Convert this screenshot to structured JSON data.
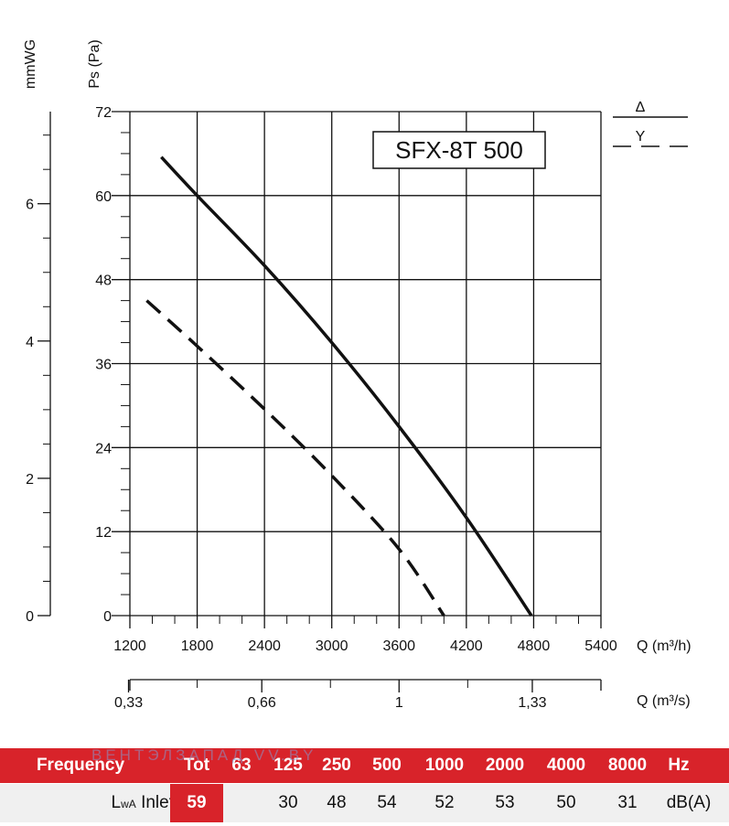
{
  "chart_data": {
    "type": "line",
    "model": "SFX-8T 500",
    "ylabel_primary": "Ps (Pa)",
    "ylabel_secondary": "mmWG",
    "xlabel_primary": "Q (m³/h)",
    "xlabel_secondary": "Q (m³/s)",
    "xlim": [
      1200,
      5400
    ],
    "ylim": [
      0,
      72
    ],
    "grid": true,
    "x_ticks": [
      "1200",
      "1800",
      "2400",
      "3000",
      "3600",
      "4200",
      "4800",
      "5400"
    ],
    "y_ticks": [
      "0",
      "12",
      "24",
      "36",
      "48",
      "60",
      "72"
    ],
    "mmwg_ticks": [
      "0",
      "2",
      "4",
      "6"
    ],
    "ms_ticks": [
      "0,33",
      "0,66",
      "1",
      "1,33"
    ],
    "legend": [
      {
        "symbol": "Δ",
        "style": "solid"
      },
      {
        "symbol": "Y",
        "style": "dashed"
      }
    ],
    "series": [
      {
        "style": "solid",
        "x": [
          1480,
          1800,
          2400,
          3000,
          3600,
          4200,
          4780
        ],
        "y": [
          65.5,
          60,
          50,
          39,
          27,
          14,
          0
        ]
      },
      {
        "style": "dashed",
        "x": [
          1350,
          1800,
          2400,
          3000,
          3600,
          4000
        ],
        "y": [
          45,
          38.5,
          29.5,
          20,
          9.5,
          0
        ]
      }
    ]
  },
  "sound_table": {
    "header_label": "Frequency",
    "tot_label": "Tot",
    "frequencies": [
      "63",
      "125",
      "250",
      "500",
      "1000",
      "2000",
      "4000",
      "8000"
    ],
    "hz_unit": "Hz",
    "row_label_main": "L",
    "row_label_sub": "wA",
    "row_label_tail": " Inlet",
    "tot_value": "59",
    "values": [
      "",
      "30",
      "48",
      "54",
      "52",
      "53",
      "50",
      "31"
    ],
    "db_unit": "dB(A)",
    "watermark": "ВЕНТЭЛЗАПАД VV.BY",
    "colors": {
      "header_bg": "#d8232a",
      "row_bg": "#f0f0f0"
    }
  }
}
